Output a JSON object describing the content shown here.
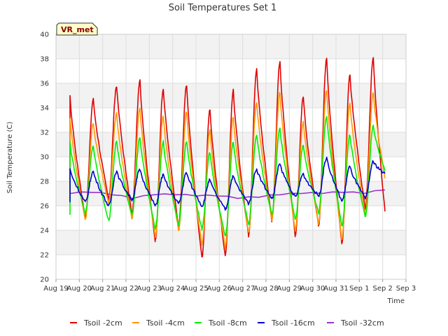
{
  "chart_data": {
    "type": "line",
    "title": "Soil Temperatures Set 1",
    "xlabel": "Time",
    "ylabel": "Soil Temperature (C)",
    "badge": "VR_met",
    "ylim": [
      20,
      40
    ],
    "yticks": [
      20,
      22,
      24,
      26,
      28,
      30,
      32,
      34,
      36,
      38,
      40
    ],
    "x_tick_labels": [
      "Aug 19",
      "Aug 20",
      "Aug 21",
      "Aug 22",
      "Aug 23",
      "Aug 24",
      "Aug 25",
      "Aug 26",
      "Aug 27",
      "Aug 28",
      "Aug 29",
      "Aug 30",
      "Aug 31",
      "Sep 1",
      "Sep 2",
      "Sep 3"
    ],
    "x_start_day": 0.6,
    "x_end_day": 14.1,
    "grid": true,
    "legend_position": "bottom",
    "series": [
      {
        "name": "Tsoil -2cm",
        "color": "#e00000",
        "peaks": [
          35.0,
          34.7,
          35.8,
          36.3,
          35.6,
          35.9,
          33.9,
          35.4,
          37.1,
          37.7,
          34.9,
          38.0,
          36.7,
          38.1
        ],
        "troughs": [
          26.5,
          25.0,
          26.5,
          25.3,
          23.1,
          24.3,
          21.8,
          22.0,
          23.5,
          24.8,
          23.6,
          24.3,
          23.0,
          25.8,
          25.5
        ]
      },
      {
        "name": "Tsoil -4cm",
        "color": "#ff9900",
        "peaks": [
          33.2,
          32.8,
          33.5,
          34.0,
          33.4,
          33.7,
          32.2,
          33.3,
          34.5,
          35.3,
          32.9,
          35.5,
          34.3,
          35.3
        ],
        "troughs": [
          26.5,
          24.9,
          26.3,
          25.0,
          23.5,
          24.0,
          22.8,
          22.6,
          23.9,
          24.9,
          24.0,
          24.6,
          23.3,
          25.3,
          28.2
        ]
      },
      {
        "name": "Tsoil -8cm",
        "color": "#00ee00",
        "peaks": [
          31.1,
          30.9,
          31.2,
          31.6,
          31.2,
          31.3,
          30.4,
          31.2,
          31.8,
          32.4,
          30.9,
          33.3,
          31.8,
          32.5
        ],
        "troughs": [
          25.3,
          25.4,
          24.8,
          25.3,
          24.2,
          24.5,
          24.1,
          23.5,
          24.5,
          25.3,
          25.0,
          25.4,
          24.4,
          25.1,
          28.8
        ]
      },
      {
        "name": "Tsoil -16cm",
        "color": "#0000cc",
        "peaks": [
          29.0,
          28.8,
          28.8,
          29.0,
          28.5,
          28.7,
          28.1,
          28.4,
          29.0,
          29.4,
          28.6,
          29.9,
          29.2,
          29.6
        ],
        "troughs": [
          26.3,
          26.3,
          26.0,
          26.5,
          26.0,
          26.2,
          26.0,
          25.7,
          26.2,
          26.6,
          26.7,
          26.8,
          26.4,
          26.6,
          28.6
        ]
      },
      {
        "name": "Tsoil -32cm",
        "color": "#9933cc",
        "values": [
          27.0,
          27.1,
          26.9,
          26.6,
          26.9,
          26.9,
          26.8,
          26.8,
          26.6,
          26.7,
          26.9,
          27.0,
          27.0,
          27.1,
          27.0,
          27.3
        ]
      }
    ]
  }
}
